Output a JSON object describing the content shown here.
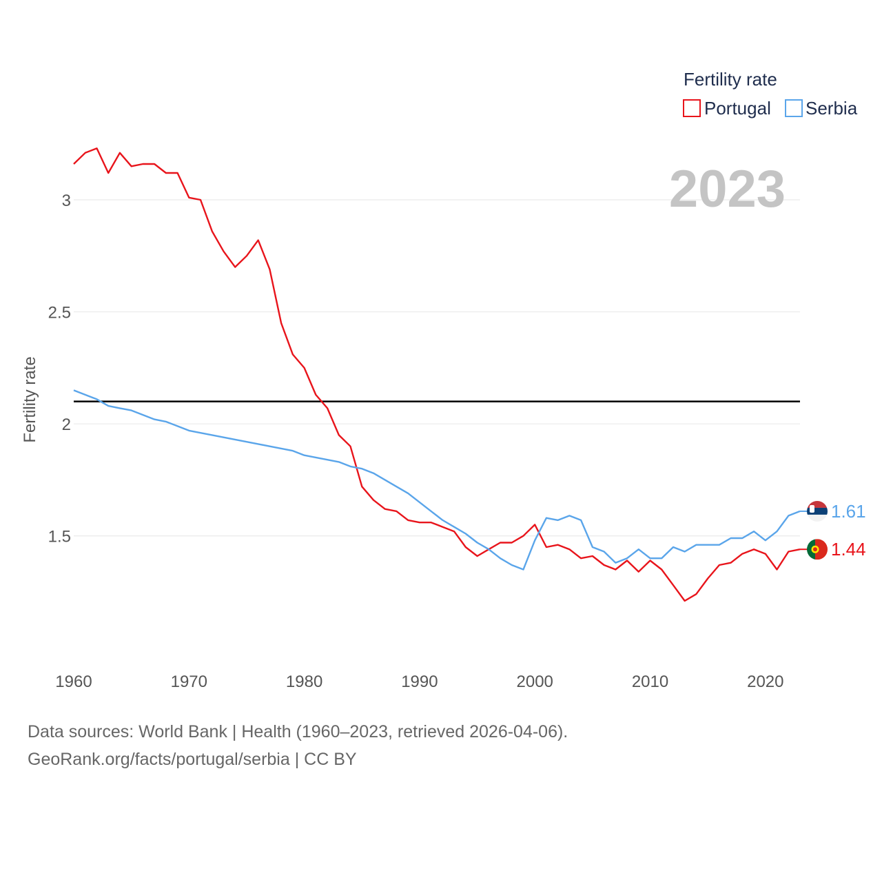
{
  "chart_data": {
    "type": "line",
    "title": "Fertility rate",
    "ylabel": "Fertility rate",
    "xlabel": "",
    "current_year": "2023",
    "xlim": [
      1960,
      2023
    ],
    "ylim": [
      1.05,
      3.4
    ],
    "x_ticks": [
      1960,
      1970,
      1980,
      1990,
      2000,
      2010,
      2020
    ],
    "y_ticks": [
      1.5,
      2,
      2.5,
      3
    ],
    "y_tick_labels": [
      "1.5",
      "2",
      "2.5",
      "3"
    ],
    "reference_line": 2.1,
    "x": [
      1960,
      1961,
      1962,
      1963,
      1964,
      1965,
      1966,
      1967,
      1968,
      1969,
      1970,
      1971,
      1972,
      1973,
      1974,
      1975,
      1976,
      1977,
      1978,
      1979,
      1980,
      1981,
      1982,
      1983,
      1984,
      1985,
      1986,
      1987,
      1988,
      1989,
      1990,
      1991,
      1992,
      1993,
      1994,
      1995,
      1996,
      1997,
      1998,
      1999,
      2000,
      2001,
      2002,
      2003,
      2004,
      2005,
      2006,
      2007,
      2008,
      2009,
      2010,
      2011,
      2012,
      2013,
      2014,
      2015,
      2016,
      2017,
      2018,
      2019,
      2020,
      2021,
      2022,
      2023
    ],
    "series": [
      {
        "name": "Portugal",
        "color": "#e8141b",
        "end_label": "1.44",
        "flag": "portugal-flag",
        "values": [
          3.16,
          3.21,
          3.23,
          3.12,
          3.21,
          3.15,
          3.16,
          3.16,
          3.12,
          3.12,
          3.01,
          3.0,
          2.86,
          2.77,
          2.7,
          2.75,
          2.82,
          2.69,
          2.45,
          2.31,
          2.25,
          2.13,
          2.07,
          1.95,
          1.9,
          1.72,
          1.66,
          1.62,
          1.61,
          1.57,
          1.56,
          1.56,
          1.54,
          1.52,
          1.45,
          1.41,
          1.44,
          1.47,
          1.47,
          1.5,
          1.55,
          1.45,
          1.46,
          1.44,
          1.4,
          1.41,
          1.37,
          1.35,
          1.39,
          1.34,
          1.39,
          1.35,
          1.28,
          1.21,
          1.24,
          1.31,
          1.37,
          1.38,
          1.42,
          1.44,
          1.42,
          1.35,
          1.43,
          1.44
        ]
      },
      {
        "name": "Serbia",
        "color": "#5aa5ea",
        "end_label": "1.61",
        "flag": "serbia-flag",
        "values": [
          2.15,
          2.13,
          2.11,
          2.08,
          2.07,
          2.06,
          2.04,
          2.02,
          2.01,
          1.99,
          1.97,
          1.96,
          1.95,
          1.94,
          1.93,
          1.92,
          1.91,
          1.9,
          1.89,
          1.88,
          1.86,
          1.85,
          1.84,
          1.83,
          1.81,
          1.8,
          1.78,
          1.75,
          1.72,
          1.69,
          1.65,
          1.61,
          1.57,
          1.54,
          1.51,
          1.47,
          1.44,
          1.4,
          1.37,
          1.35,
          1.48,
          1.58,
          1.57,
          1.59,
          1.57,
          1.45,
          1.43,
          1.38,
          1.4,
          1.44,
          1.4,
          1.4,
          1.45,
          1.43,
          1.46,
          1.46,
          1.46,
          1.49,
          1.49,
          1.52,
          1.48,
          1.52,
          1.59,
          1.61
        ]
      }
    ],
    "legend": {
      "title": "Fertility rate",
      "position": "top-right"
    }
  },
  "source": {
    "line1": "Data sources: World Bank | Health (1960–2023, retrieved 2026-04-06).",
    "line2": "GeoRank.org/facts/portugal/serbia | CC BY"
  }
}
